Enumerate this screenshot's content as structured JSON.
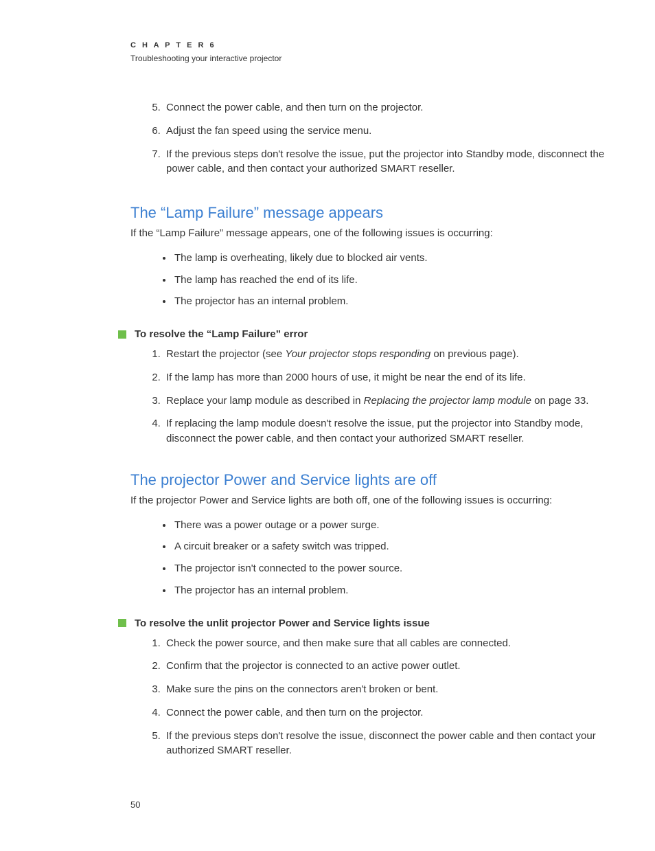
{
  "header": {
    "chapter_label": "C H A P T E R   6",
    "chapter_subtitle": "Troubleshooting your interactive projector"
  },
  "top_steps_start": 5,
  "top_steps": [
    "Connect the power cable, and then turn on the projector.",
    "Adjust the fan speed using the service menu.",
    "If the previous steps don't resolve the issue, put the projector into Standby mode, disconnect the power cable, and then contact your authorized SMART reseller."
  ],
  "section1": {
    "heading": "The “Lamp Failure” message appears",
    "intro": "If the “Lamp Failure” message appears, one of the following issues is occurring:",
    "bullets": [
      "The lamp is overheating, likely due to blocked air vents.",
      "The lamp has reached the end of its life.",
      "The projector has an internal problem."
    ],
    "resolve_title": "To resolve the “Lamp Failure” error",
    "steps": [
      {
        "pre": "Restart the projector (see ",
        "italic": "Your projector stops responding",
        "post": " on previous page)."
      },
      {
        "pre": "If the lamp has more than 2000 hours of use, it might be near the end of its life.",
        "italic": "",
        "post": ""
      },
      {
        "pre": "Replace your lamp module as described in ",
        "italic": "Replacing the projector lamp module",
        "post": " on page 33."
      },
      {
        "pre": "If replacing the lamp module doesn't resolve the issue, put the projector into Standby mode, disconnect the power cable, and then contact your authorized SMART reseller.",
        "italic": "",
        "post": ""
      }
    ]
  },
  "section2": {
    "heading": "The projector Power and Service lights are off",
    "intro": "If the projector Power and Service lights are both off, one of the following issues is occurring:",
    "bullets": [
      "There was a power outage or a power surge.",
      "A circuit breaker or a safety switch was tripped.",
      "The projector isn't connected to the power source.",
      "The projector has an internal problem."
    ],
    "resolve_title": "To resolve the unlit projector Power and Service lights issue",
    "steps": [
      {
        "pre": "Check the power source, and then make sure that all cables are connected.",
        "italic": "",
        "post": ""
      },
      {
        "pre": "Confirm that the projector is connected to an active power outlet.",
        "italic": "",
        "post": ""
      },
      {
        "pre": "Make sure the pins on the connectors aren't broken or bent.",
        "italic": "",
        "post": ""
      },
      {
        "pre": "Connect the power cable, and then turn on the projector.",
        "italic": "",
        "post": ""
      },
      {
        "pre": "If the previous steps don't resolve the issue, disconnect the power cable and then contact your authorized SMART reseller.",
        "italic": "",
        "post": ""
      }
    ]
  },
  "page_number": "50",
  "colors": {
    "heading": "#3b7fd1",
    "text": "#333333",
    "square": "#6fbf4b",
    "background": "#ffffff"
  },
  "typography": {
    "body_fontsize": 15,
    "heading_fontsize": 22,
    "chapter_label_fontsize": 11,
    "chapter_subtitle_fontsize": 12
  }
}
